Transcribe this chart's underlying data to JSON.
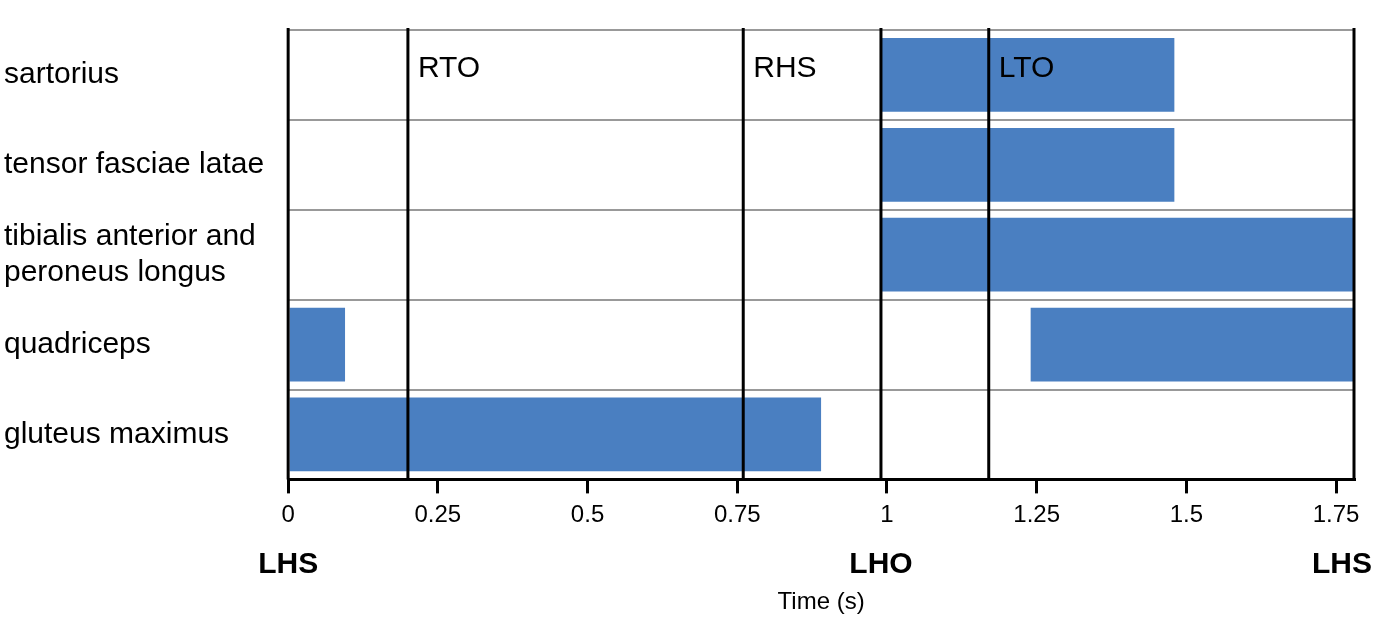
{
  "chart_data": {
    "type": "bar",
    "orientation": "horizontal",
    "xlabel": "Time (s)",
    "categories": [
      "sartorius",
      "tensor fasciae latae",
      "tibialis anterior and peroneus longus",
      "quadriceps",
      "gluteus maximus"
    ],
    "series": [
      {
        "color": "#4a7fc1",
        "base": [
          0.99,
          0.99,
          0.99,
          0,
          0
        ],
        "values": [
          0.49,
          0.49,
          0.79,
          0.095,
          0.89
        ]
      },
      {
        "color": "#4a7fc1",
        "base": [
          null,
          null,
          null,
          1.24,
          null
        ],
        "values": [
          null,
          null,
          null,
          0.54,
          null
        ]
      }
    ],
    "xlim": [
      0,
      1.78
    ],
    "xticks": [
      0,
      0.25,
      0.5,
      0.75,
      1,
      1.25,
      1.5,
      1.75
    ],
    "grid": "y",
    "legend": false,
    "ref_lines": [
      {
        "axis": "x",
        "value": 0,
        "label": "LHS",
        "color": "#000000"
      },
      {
        "axis": "x",
        "value": 0.2,
        "label": null,
        "color": "#000000"
      },
      {
        "axis": "x",
        "value": 0.76,
        "label": null,
        "color": "#000000"
      },
      {
        "axis": "x",
        "value": 0.99,
        "label": "LHO",
        "color": "#000000"
      },
      {
        "axis": "x",
        "value": 1.17,
        "label": null,
        "color": "#000000"
      },
      {
        "axis": "x",
        "value": 1.78,
        "label": "LHS",
        "color": "#000000"
      }
    ],
    "annotations": [
      {
        "text": "RTO",
        "x": 0.2,
        "y": "sartorius"
      },
      {
        "text": "RHS",
        "x": 0.76,
        "y": "sartorius"
      },
      {
        "text": "LTO",
        "x": 1.17,
        "y": "sartorius"
      }
    ]
  }
}
